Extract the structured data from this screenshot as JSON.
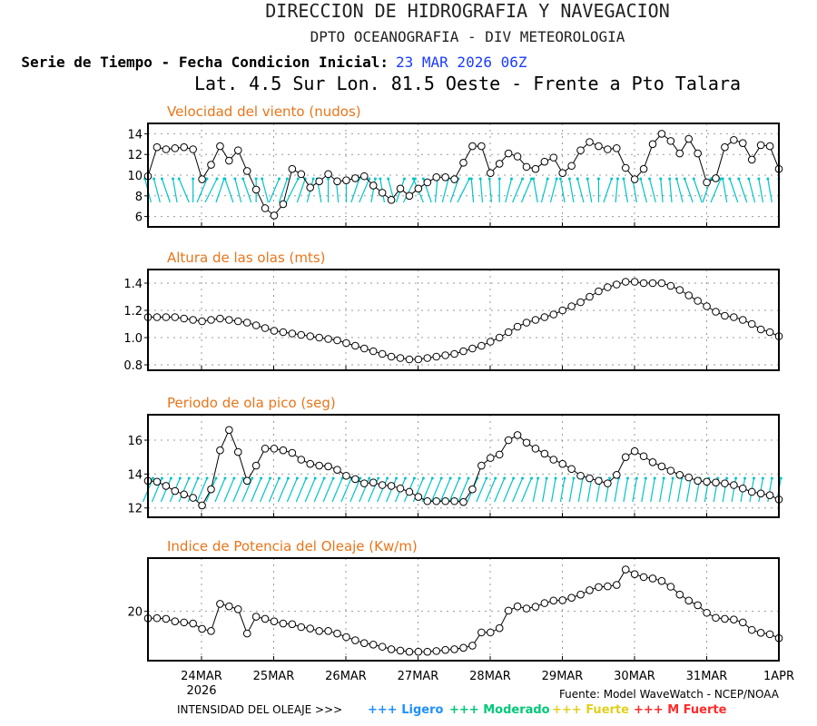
{
  "header": {
    "line1": "DIRECCION DE HIDROGRAFIA Y NAVEGACION",
    "line2": "DPTO OCEANOGRAFIA - DIV METEOROLOGIA",
    "line3_label": "Serie de Tiempo - Fecha Condicion Inicial:",
    "line3_date": "23 MAR 2026 06Z",
    "line4": "Lat. 4.5 Sur  Lon. 81.5 Oeste - Frente a Pto Talara"
  },
  "colors": {
    "title": "#e8751a",
    "date": "#1a3cff",
    "arrow": "#00c4c8",
    "line": "#000000"
  },
  "footer": {
    "source": "Fuente: Model WaveWatch - NCEP/NOAA",
    "intensity_label": "INTENSIDAD DEL OLEAJE >>>",
    "legend": [
      {
        "label": "+++ Ligero",
        "color": "#1e90ff"
      },
      {
        "label": "+++ Moderado",
        "color": "#00c878"
      },
      {
        "label": "+++ Fuerte",
        "color": "#e0d020"
      },
      {
        "label": "+++ M Fuerte",
        "color": "#ff2a2a"
      }
    ]
  },
  "chart_data": [
    {
      "type": "line",
      "title": "Velocidad del viento (nudos)",
      "x_start": "23MAR2026 06Z",
      "x_step_hours": 3,
      "x_tick_labels": [
        "24MAR",
        "25MAR",
        "26MAR",
        "27MAR",
        "28MAR",
        "29MAR",
        "30MAR",
        "31MAR",
        "1APR"
      ],
      "x_tick_sublabel": "2026",
      "ylim": [
        5,
        15
      ],
      "yticks": [
        6,
        8,
        10,
        12,
        14
      ],
      "grid": true,
      "values": [
        9.9,
        12.7,
        12.5,
        12.6,
        12.7,
        12.5,
        9.6,
        11.0,
        12.8,
        11.4,
        12.4,
        10.4,
        8.6,
        6.8,
        6.1,
        7.2,
        10.6,
        10.1,
        8.8,
        9.4,
        10.1,
        9.4,
        9.5,
        9.7,
        9.9,
        9.0,
        8.3,
        7.6,
        8.7,
        8.0,
        8.7,
        9.3,
        9.8,
        9.8,
        9.6,
        11.2,
        12.8,
        12.8,
        10.2,
        11.1,
        12.1,
        11.8,
        10.8,
        10.6,
        11.3,
        11.7,
        10.2,
        10.9,
        12.4,
        13.2,
        12.8,
        12.5,
        12.6,
        10.7,
        9.6,
        10.6,
        13.0,
        14.0,
        13.3,
        12.1,
        13.5,
        12.1,
        9.3,
        9.7,
        12.7,
        13.4,
        13.1,
        11.5,
        12.9,
        12.8,
        10.6
      ],
      "arrow_tilt_deg": [
        -15,
        -15,
        -20,
        -10,
        -25,
        0,
        25,
        30,
        20,
        -20,
        -15,
        -20,
        0,
        -15,
        25,
        20,
        30,
        20,
        15,
        -10,
        0,
        -5,
        0,
        20,
        25,
        10,
        -10,
        -15,
        20,
        30,
        -25,
        -20,
        5,
        15,
        20,
        30,
        -5,
        -5,
        -5,
        0,
        15,
        25,
        25,
        -10,
        15,
        15,
        -10,
        -10,
        -15,
        -10,
        0,
        20,
        5,
        -10,
        -10,
        -15,
        -15,
        -5,
        -5,
        -15,
        -20,
        -20,
        20,
        25,
        -10,
        -20,
        -20,
        -15,
        -10,
        -10,
        0
      ]
    },
    {
      "type": "line",
      "title": "Altura de las olas (mts)",
      "ylim": [
        0.76,
        1.5
      ],
      "yticks": [
        0.8,
        1.0,
        1.2,
        1.4
      ],
      "grid": true,
      "values": [
        1.15,
        1.15,
        1.15,
        1.15,
        1.14,
        1.13,
        1.12,
        1.13,
        1.14,
        1.13,
        1.12,
        1.11,
        1.09,
        1.07,
        1.05,
        1.04,
        1.03,
        1.02,
        1.01,
        1.0,
        0.99,
        0.98,
        0.96,
        0.94,
        0.92,
        0.9,
        0.88,
        0.86,
        0.85,
        0.84,
        0.84,
        0.85,
        0.86,
        0.87,
        0.88,
        0.9,
        0.92,
        0.94,
        0.97,
        1.0,
        1.04,
        1.08,
        1.11,
        1.13,
        1.15,
        1.17,
        1.2,
        1.23,
        1.26,
        1.3,
        1.34,
        1.37,
        1.39,
        1.41,
        1.41,
        1.4,
        1.4,
        1.4,
        1.38,
        1.35,
        1.31,
        1.27,
        1.23,
        1.19,
        1.16,
        1.15,
        1.13,
        1.1,
        1.06,
        1.04,
        1.01
      ]
    },
    {
      "type": "line",
      "title": "Periodo de ola pico (seg)",
      "ylim": [
        11.45,
        17.5
      ],
      "yticks": [
        12,
        14,
        16
      ],
      "grid": true,
      "values": [
        13.6,
        13.55,
        13.3,
        13.0,
        12.8,
        12.6,
        12.15,
        13.1,
        15.4,
        16.6,
        15.3,
        13.6,
        14.5,
        15.5,
        15.5,
        15.4,
        15.25,
        14.85,
        14.6,
        14.5,
        14.45,
        14.25,
        13.9,
        13.7,
        13.45,
        13.5,
        13.35,
        13.3,
        13.15,
        12.95,
        12.65,
        12.4,
        12.4,
        12.4,
        12.4,
        12.35,
        13.1,
        14.5,
        14.95,
        15.15,
        16.0,
        16.3,
        15.85,
        15.5,
        15.2,
        14.85,
        14.6,
        14.3,
        13.9,
        13.75,
        13.6,
        13.45,
        13.95,
        15.0,
        15.35,
        15.05,
        14.7,
        14.45,
        14.2,
        13.95,
        13.8,
        13.6,
        13.55,
        13.5,
        13.45,
        13.35,
        13.15,
        12.95,
        12.85,
        12.75,
        12.5
      ],
      "arrow_tilt_deg": [
        25,
        25,
        25,
        25,
        25,
        25,
        25,
        25,
        25,
        25,
        25,
        25,
        25,
        25,
        25,
        25,
        25,
        25,
        25,
        25,
        25,
        25,
        25,
        25,
        25,
        25,
        25,
        25,
        25,
        25,
        25,
        25,
        25,
        25,
        25,
        25,
        25,
        25,
        25,
        25,
        25,
        25,
        25,
        12,
        10,
        10,
        10,
        10,
        10,
        10,
        10,
        10,
        10,
        10,
        10,
        10,
        10,
        10,
        10,
        10,
        10,
        10,
        10,
        10,
        10,
        10,
        10,
        10,
        10,
        10,
        10
      ]
    },
    {
      "type": "line",
      "title": "Indice de Potencia del Oleaje (Kw/m)",
      "ylim": [
        6.2,
        34.9
      ],
      "yticks": [
        20
      ],
      "grid": true,
      "values": [
        18.05,
        18.1,
        17.9,
        17.2,
        16.9,
        16.6,
        15.1,
        14.5,
        22.1,
        21.4,
        20.6,
        13.8,
        18.5,
        17.9,
        17.2,
        16.6,
        16.4,
        15.6,
        15.2,
        14.5,
        14.5,
        13.8,
        12.8,
        11.9,
        11.1,
        10.7,
        10.1,
        9.4,
        9.0,
        8.7,
        8.7,
        8.7,
        8.9,
        9.2,
        9.4,
        9.8,
        10.4,
        14.1,
        14.1,
        15.3,
        20.2,
        21.4,
        20.8,
        21.3,
        22.3,
        23.0,
        23.1,
        23.8,
        24.7,
        25.9,
        26.8,
        27.0,
        27.4,
        31.7,
        30.4,
        29.6,
        29.2,
        28.5,
        26.9,
        24.7,
        23.0,
        21.7,
        19.6,
        18.2,
        17.9,
        17.7,
        16.9,
        14.8,
        14.0,
        13.6,
        12.5
      ]
    }
  ]
}
